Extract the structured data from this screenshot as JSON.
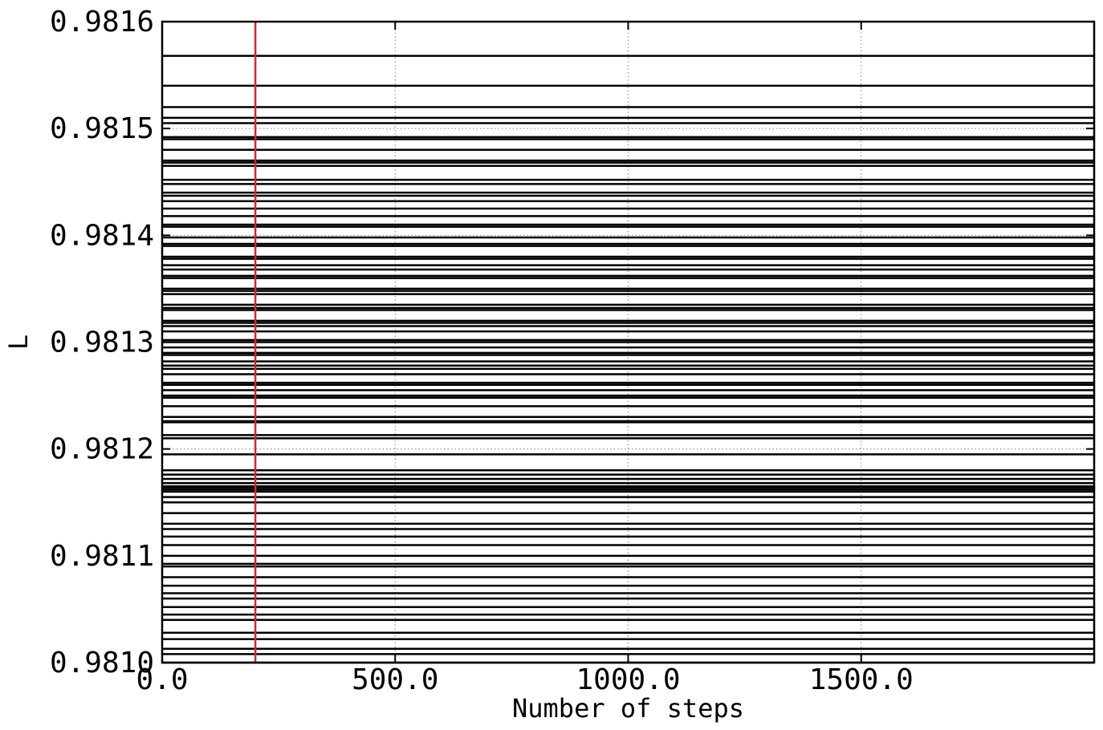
{
  "chart_data": {
    "type": "line",
    "xlabel": "Number of steps",
    "ylabel": "L",
    "xlim": [
      0,
      2000
    ],
    "ylim": [
      0.981,
      0.9816
    ],
    "x_ticks": [
      0,
      500,
      1000,
      1500
    ],
    "x_tick_labels": [
      "0.0",
      "500.0",
      "1000.0",
      "1500.0"
    ],
    "y_ticks": [
      0.981,
      0.9811,
      0.9812,
      0.9813,
      0.9814,
      0.9815,
      0.9816
    ],
    "y_tick_labels": [
      "0.9810",
      "0.9811",
      "0.9812",
      "0.9813",
      "0.9814",
      "0.9815",
      "0.9816"
    ],
    "grid": true,
    "burn_in_step": 200,
    "burn_in_color": "#d62728",
    "series_color": "#000000",
    "series_note": "each walker trace is constant over all steps",
    "walker_values": [
      0.981568,
      0.98154,
      0.98152,
      0.98151,
      0.98149,
      0.98148,
      0.98147,
      0.981465,
      0.981452,
      0.98144,
      0.981432,
      0.981425,
      0.98141,
      0.981398,
      0.98139,
      0.98138,
      0.981372,
      0.981368,
      0.98136,
      0.98135,
      0.981345,
      0.981335,
      0.98133,
      0.98132,
      0.981315,
      0.98131,
      0.9813,
      0.981295,
      0.98129,
      0.981282,
      0.981278,
      0.98127,
      0.98126,
      0.981255,
      0.98125,
      0.98124,
      0.98123,
      0.981225,
      0.98121,
      0.981195,
      0.98118,
      0.981172,
      0.981165,
      0.98116,
      0.981155,
      0.98115,
      0.98114,
      0.98113,
      0.981125,
      0.981118,
      0.98111,
      0.9811,
      0.98109,
      0.98108,
      0.981072,
      0.981065,
      0.98106,
      0.981052,
      0.981045,
      0.98104,
      0.981028,
      0.981022,
      0.981013,
      0.981008,
      0.981,
      0.98099,
      0.98098,
      0.981176,
      0.981168,
      0.981162,
      0.981164,
      0.9810925,
      0.981213,
      0.981226,
      0.981248,
      0.981262,
      0.981275,
      0.981288,
      0.981302,
      0.981318,
      0.981332,
      0.981348,
      0.981362,
      0.981378,
      0.981392,
      0.981408,
      0.981418,
      0.981437,
      0.981448,
      0.981468,
      0.981492,
      0.981505
    ]
  }
}
